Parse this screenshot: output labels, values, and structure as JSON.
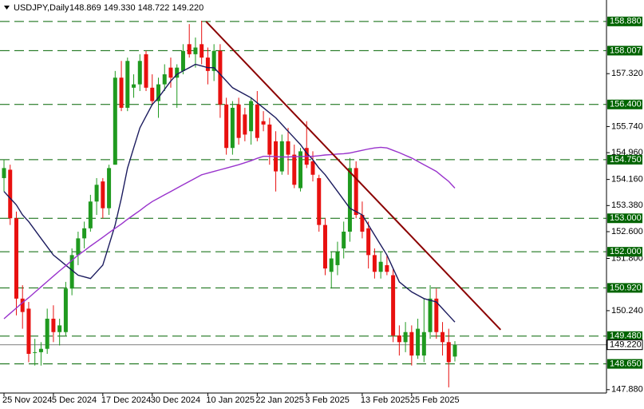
{
  "chart_data": {
    "type": "candlestick",
    "title": "USDJPY,Daily",
    "quote": "148.869 149.330 148.722 149.220",
    "up_color": "#1f9a1f",
    "down_color": "#e8100f",
    "categories": [
      "25 Nov 2024",
      null,
      null,
      null,
      null,
      null,
      null,
      null,
      "5 Dec 2024",
      null,
      null,
      null,
      null,
      null,
      null,
      null,
      "17 Dec 2024",
      null,
      null,
      null,
      null,
      null,
      null,
      null,
      "30 Dec 2024",
      null,
      null,
      null,
      null,
      null,
      null,
      null,
      null,
      "10 Jan 2025",
      null,
      null,
      null,
      null,
      null,
      null,
      null,
      "22 Jan 2025",
      null,
      null,
      null,
      null,
      null,
      null,
      null,
      "3 Feb 2025",
      null,
      null,
      null,
      null,
      null,
      null,
      null,
      null,
      "13 Feb 2025",
      null,
      null,
      null,
      null,
      null,
      null,
      null,
      "25 Feb 2025",
      null,
      null,
      null,
      null,
      null,
      null,
      null
    ],
    "open": [
      154.2,
      154.45,
      153.0,
      150.6,
      150.3,
      149.0,
      149.0,
      149.1,
      150.0,
      149.6,
      149.6,
      150.9,
      151.9,
      152.4,
      152.7,
      153.5,
      154.1,
      153.3,
      154.6,
      157.2,
      156.3,
      156.9,
      157.0,
      157.9,
      156.9,
      156.5,
      157.0,
      157.5,
      157.2,
      157.4,
      158.2,
      157.9,
      158.2,
      157.8,
      157.4,
      158.0,
      156.4,
      155.1,
      156.4,
      156.1,
      155.6,
      156.4,
      155.9,
      155.8,
      155.3,
      154.4,
      155.3,
      154.9,
      153.9,
      155.1,
      154.7,
      154.2,
      152.8,
      151.4,
      151.6,
      152.1,
      152.6,
      154.5,
      153.1,
      152.7,
      151.9,
      151.4,
      151.6,
      151.3,
      149.5,
      149.3,
      149.6,
      148.9,
      148.9,
      149.6,
      150.6,
      149.6,
      149.3,
      148.869
    ],
    "high": [
      154.75,
      154.6,
      153.2,
      151.0,
      150.5,
      149.4,
      149.3,
      150.3,
      150.4,
      150.0,
      151.1,
      152.1,
      152.6,
      152.9,
      153.7,
      154.2,
      154.2,
      154.6,
      157.4,
      157.7,
      157.8,
      157.3,
      157.9,
      158.0,
      157.3,
      157.2,
      157.6,
      157.8,
      157.6,
      158.2,
      158.8,
      158.4,
      158.9,
      158.1,
      158.2,
      158.2,
      156.6,
      156.5,
      156.6,
      156.3,
      156.6,
      156.8,
      156.2,
      156.0,
      155.6,
      155.5,
      155.7,
      155.2,
      155.1,
      155.9,
      155.0,
      154.3,
      153.0,
      152.0,
      152.3,
      152.9,
      154.8,
      154.7,
      153.5,
      152.9,
      152.1,
      152.0,
      151.9,
      151.5,
      149.8,
      149.9,
      149.8,
      150.0,
      150.6,
      151.0,
      150.9,
      149.9,
      149.7,
      149.33
    ],
    "low": [
      153.8,
      152.8,
      150.1,
      149.7,
      148.7,
      148.6,
      148.6,
      148.95,
      149.3,
      149.2,
      149.5,
      150.7,
      151.6,
      152.1,
      152.6,
      153.1,
      153.0,
      153.1,
      154.6,
      156.2,
      156.2,
      156.6,
      156.8,
      156.8,
      156.4,
      156.0,
      156.8,
      156.9,
      156.3,
      157.3,
      157.8,
      157.5,
      157.6,
      157.0,
      157.1,
      156.0,
      154.9,
      154.9,
      155.2,
      155.3,
      155.2,
      155.3,
      155.6,
      154.6,
      153.8,
      154.3,
      154.3,
      153.9,
      153.8,
      154.5,
      154.1,
      152.6,
      151.3,
      150.9,
      151.3,
      151.8,
      152.3,
      153.0,
      152.4,
      151.5,
      151.2,
      151.2,
      151.3,
      149.3,
      148.9,
      149.0,
      148.6,
      148.8,
      148.7,
      149.4,
      149.4,
      148.9,
      147.95,
      148.722
    ],
    "close": [
      154.5,
      153.0,
      150.6,
      150.2,
      148.95,
      149.0,
      149.1,
      150.0,
      149.6,
      149.8,
      150.9,
      151.9,
      152.4,
      152.7,
      153.5,
      154.0,
      153.3,
      154.5,
      157.2,
      156.3,
      157.7,
      157.0,
      157.7,
      156.9,
      156.5,
      157.0,
      157.3,
      157.2,
      157.5,
      158.0,
      157.9,
      158.1,
      157.8,
      157.4,
      158.0,
      156.4,
      155.1,
      156.3,
      155.4,
      155.5,
      156.5,
      155.4,
      155.8,
      154.9,
      154.4,
      155.3,
      154.9,
      154.0,
      155.0,
      154.6,
      154.3,
      152.8,
      151.5,
      151.8,
      152.0,
      152.6,
      154.5,
      153.1,
      152.6,
      151.9,
      151.4,
      151.7,
      151.4,
      149.5,
      149.3,
      149.6,
      148.9,
      149.7,
      149.6,
      150.6,
      149.6,
      149.3,
      148.7,
      149.22
    ],
    "series": [
      {
        "color": "#1b1b5e",
        "values": [
          153.8,
          153.6,
          153.4,
          153.1,
          152.9,
          152.65,
          152.4,
          152.15,
          151.9,
          151.75,
          151.6,
          151.45,
          151.3,
          151.25,
          151.2,
          151.4,
          151.6,
          152.2,
          152.8,
          153.6,
          154.5,
          155.1,
          155.7,
          156.05,
          156.4,
          156.6,
          156.85,
          157.1,
          157.3,
          157.4,
          157.5,
          157.6,
          157.55,
          157.5,
          157.5,
          157.3,
          157.1,
          156.9,
          156.8,
          156.7,
          156.6,
          156.45,
          156.3,
          156.15,
          156.0,
          155.8,
          155.6,
          155.4,
          155.2,
          154.95,
          154.75,
          154.5,
          154.3,
          154.05,
          153.8,
          153.55,
          153.3,
          153.2,
          153.1,
          152.8,
          152.5,
          152.2,
          151.9,
          151.5,
          151.1,
          150.95,
          150.8,
          150.7,
          150.6,
          150.55,
          150.5,
          150.3,
          150.1,
          149.9
        ]
      },
      {
        "color": "#9933cc",
        "values": [
          150.0,
          150.16,
          150.32,
          150.48,
          150.63,
          150.79,
          150.95,
          151.11,
          151.27,
          151.43,
          151.58,
          151.74,
          151.9,
          152.03,
          152.17,
          152.3,
          152.43,
          152.57,
          152.7,
          152.83,
          152.97,
          153.1,
          153.23,
          153.37,
          153.5,
          153.6,
          153.7,
          153.8,
          153.9,
          154.0,
          154.1,
          154.2,
          154.3,
          154.35,
          154.4,
          154.45,
          154.5,
          154.55,
          154.6,
          154.66,
          154.72,
          154.79,
          154.85,
          154.85,
          154.84,
          154.83,
          154.83,
          154.84,
          154.84,
          154.85,
          154.85,
          154.87,
          154.89,
          154.9,
          154.92,
          154.93,
          154.95,
          154.99,
          155.03,
          155.07,
          155.1,
          155.12,
          155.1,
          155.03,
          154.96,
          154.88,
          154.8,
          154.7,
          154.6,
          154.5,
          154.4,
          154.25,
          154.1,
          153.9
        ]
      }
    ],
    "trendline": {
      "color": "#8b0000",
      "x": [
        32.7,
        80.4
      ],
      "y": [
        158.88,
        149.67
      ]
    },
    "level_color": "#006400",
    "levels": [
      {
        "value": 158.88,
        "label": "158.880"
      },
      158.007,
      {
        "value": 156.4,
        "label": "156.400"
      },
      {
        "value": 154.75,
        "label": "154.750"
      },
      {
        "value": 153.0,
        "label": "153.000"
      },
      {
        "value": 152.0,
        "label": "152.000"
      },
      {
        "value": 150.92,
        "label": "150.920"
      },
      {
        "value": 149.48,
        "label": "149.480"
      },
      {
        "value": 148.65,
        "label": "148.650"
      }
    ],
    "bid": {
      "value": 149.22,
      "label": "149.220"
    },
    "ylim": [
      147.78,
      159.52
    ],
    "yticks": [
      {
        "value": 157.32,
        "label": "157.320"
      },
      {
        "value": 155.74,
        "label": "155.740"
      },
      {
        "value": 154.96,
        "label": "154.960"
      },
      {
        "value": 154.16,
        "label": "154.160"
      },
      {
        "value": 153.38,
        "label": "153.380"
      },
      {
        "value": 152.6,
        "label": "152.600"
      },
      {
        "value": 151.8,
        "label": "151.800"
      },
      {
        "value": 150.24,
        "label": "150.240"
      },
      {
        "value": 147.88,
        "label": "147.880"
      }
    ]
  }
}
